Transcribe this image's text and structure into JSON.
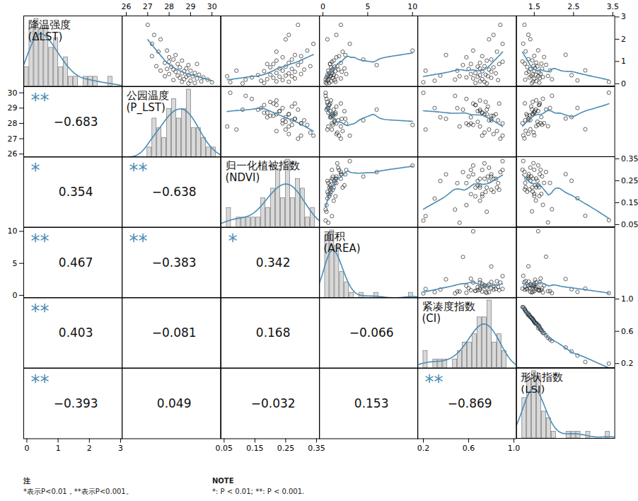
{
  "chart_data": {
    "type": "scatter_matrix",
    "color": "#4a8cb4",
    "variables": [
      {
        "name": "降温强度",
        "symbol": "(ΔLST)",
        "lim": [
          -0.1,
          3.05
        ],
        "ticks": [
          0,
          1,
          2,
          3
        ],
        "values": [
          2.65,
          2.2,
          2.0,
          1.5,
          1.45,
          1.3,
          1.25,
          1.2,
          1.1,
          1.05,
          1.0,
          0.95,
          0.9,
          0.85,
          0.8,
          0.78,
          0.75,
          0.7,
          0.68,
          0.65,
          0.6,
          0.58,
          0.55,
          0.5,
          0.48,
          0.45,
          0.42,
          0.4,
          0.38,
          0.35,
          0.33,
          0.3,
          0.28,
          0.25,
          0.22,
          0.2,
          0.18,
          0.15,
          0.12,
          0.1,
          0.08,
          0.05,
          0.03,
          0.6,
          1.8,
          0.9,
          0.35
        ]
      },
      {
        "name": "公园温度",
        "symbol": "(P_LST)",
        "lim": [
          25.8,
          30.4
        ],
        "ticks": [
          26,
          27,
          28,
          29,
          30
        ],
        "values": [
          27.0,
          27.3,
          27.6,
          27.9,
          27.5,
          28.3,
          27.2,
          28.0,
          28.2,
          28.6,
          28.0,
          27.8,
          28.4,
          28.9,
          27.4,
          28.1,
          28.5,
          28.8,
          27.9,
          28.2,
          29.0,
          28.7,
          28.3,
          29.2,
          28.6,
          28.0,
          29.4,
          28.9,
          28.4,
          29.1,
          28.8,
          29.6,
          28.5,
          29.3,
          28.7,
          29.8,
          28.2,
          29.0,
          29.5,
          28.6,
          30.0,
          29.2,
          28.9,
          27.6,
          27.2,
          29.3,
          27.8
        ]
      },
      {
        "name": "归一化植被指数",
        "symbol": "(NDVI)",
        "lim": [
          0.04,
          0.36
        ],
        "ticks": [
          0.05,
          0.15,
          0.25,
          0.35
        ],
        "values": [
          0.29,
          0.26,
          0.25,
          0.32,
          0.22,
          0.28,
          0.3,
          0.24,
          0.27,
          0.22,
          0.3,
          0.26,
          0.19,
          0.29,
          0.33,
          0.25,
          0.2,
          0.23,
          0.27,
          0.31,
          0.24,
          0.18,
          0.28,
          0.22,
          0.26,
          0.3,
          0.2,
          0.16,
          0.25,
          0.27,
          0.23,
          0.14,
          0.21,
          0.28,
          0.19,
          0.12,
          0.24,
          0.17,
          0.22,
          0.26,
          0.07,
          0.18,
          0.11,
          0.09,
          0.34,
          0.21,
          0.06
        ]
      },
      {
        "name": "面积",
        "symbol": "(AREA)",
        "lim": [
          -0.4,
          10.6
        ],
        "ticks": [
          0,
          5,
          10
        ],
        "values": [
          2.0,
          1.5,
          0.5,
          10.0,
          2.2,
          2.5,
          1.8,
          1.5,
          4.5,
          1.2,
          1.0,
          2.0,
          0.8,
          6.0,
          1.6,
          1.3,
          0.9,
          2.4,
          1.1,
          1.7,
          0.6,
          1.4,
          2.1,
          0.7,
          1.0,
          2.6,
          0.5,
          1.2,
          0.9,
          1.5,
          0.8,
          0.4,
          1.1,
          2.0,
          0.6,
          0.3,
          1.3,
          0.5,
          0.9,
          1.4,
          0.3,
          0.7,
          0.4,
          1.0,
          3.0,
          0.8,
          0.6
        ]
      },
      {
        "name": "紧凑度指数",
        "symbol": "(CI)",
        "lim": [
          0.15,
          1.02
        ],
        "ticks": [
          0.2,
          0.6,
          {
            "value": 1,
            "label": "1.0"
          }
        ],
        "values": [
          0.88,
          0.82,
          0.78,
          0.64,
          0.85,
          0.4,
          0.72,
          0.58,
          0.8,
          0.76,
          0.9,
          0.7,
          0.62,
          0.55,
          0.74,
          0.68,
          0.82,
          0.7,
          0.6,
          0.78,
          0.5,
          0.72,
          0.8,
          0.66,
          0.84,
          0.62,
          0.75,
          0.7,
          0.35,
          0.77,
          0.68,
          0.58,
          0.8,
          0.64,
          0.72,
          0.48,
          0.86,
          0.3,
          0.7,
          0.74,
          0.2,
          0.66,
          0.76,
          0.22,
          0.9,
          0.87,
          0.52
        ]
      },
      {
        "name": "形状指数",
        "symbol": "(LSI)",
        "lim": [
          1.05,
          3.55
        ],
        "ticks": [
          1.5,
          2.5,
          3.5
        ],
        "values": [
          1.25,
          1.35,
          1.4,
          1.6,
          1.28,
          2.3,
          1.5,
          1.75,
          1.35,
          1.45,
          1.2,
          1.55,
          1.68,
          1.8,
          1.48,
          1.58,
          1.32,
          1.52,
          1.7,
          1.4,
          1.9,
          1.5,
          1.36,
          1.62,
          1.3,
          1.66,
          1.46,
          1.54,
          2.45,
          1.42,
          1.6,
          1.72,
          1.38,
          1.64,
          1.5,
          1.95,
          1.27,
          2.6,
          1.55,
          1.47,
          3.4,
          1.63,
          1.44,
          2.8,
          1.22,
          1.26,
          1.85
        ]
      }
    ],
    "correlations": [
      [
        null,
        null,
        null,
        null,
        null,
        null
      ],
      [
        -0.683,
        null,
        null,
        null,
        null,
        null
      ],
      [
        0.354,
        -0.638,
        null,
        null,
        null,
        null
      ],
      [
        0.467,
        -0.383,
        0.342,
        null,
        null,
        null
      ],
      [
        0.403,
        -0.081,
        0.168,
        -0.066,
        null,
        null
      ],
      [
        -0.393,
        0.049,
        -0.032,
        0.153,
        -0.869,
        null
      ]
    ],
    "significance": [
      [
        null,
        null,
        null,
        null,
        null,
        null
      ],
      [
        "**",
        null,
        null,
        null,
        null,
        null
      ],
      [
        "*",
        "**",
        null,
        null,
        null,
        null
      ],
      [
        "**",
        "**",
        "*",
        null,
        null,
        null
      ],
      [
        "**",
        null,
        null,
        null,
        null,
        null
      ],
      [
        "**",
        null,
        null,
        null,
        "**",
        null
      ]
    ],
    "notes": [
      {
        "title": "注",
        "text": "*表示P<0.01，**表示P<0.001。"
      },
      {
        "title": "NOTE",
        "text": "*: P < 0.01; **: P < 0.001."
      }
    ]
  }
}
